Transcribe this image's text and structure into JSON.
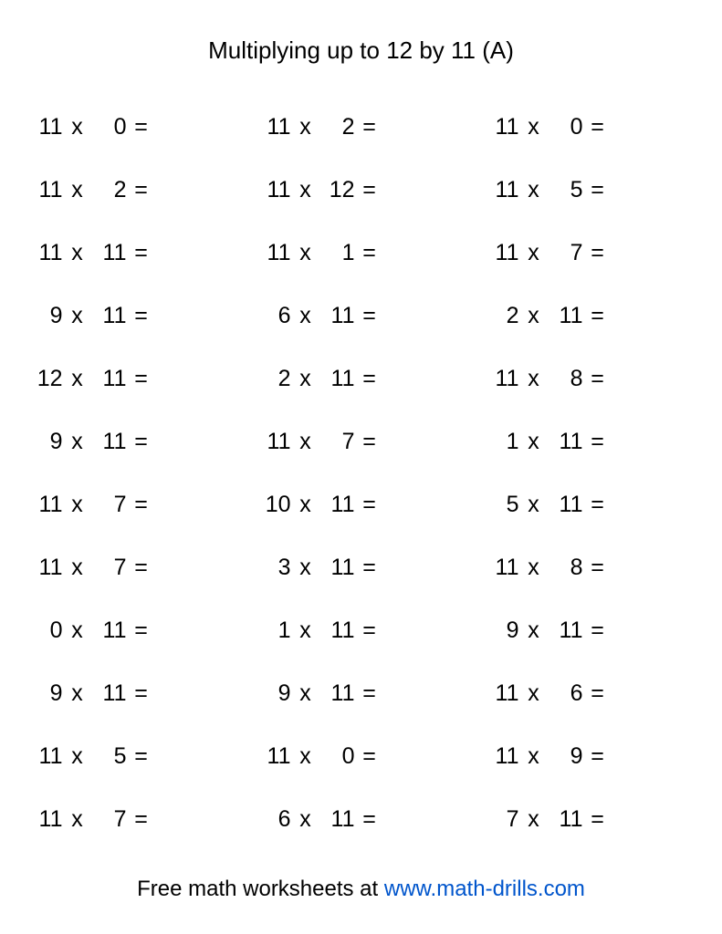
{
  "title": "Multiplying up to 12 by 11 (A)",
  "operator": "x",
  "equals": "=",
  "footer_prefix": "Free math worksheets at ",
  "footer_link": "www.math-drills.com",
  "link_color": "#0055cc",
  "text_color": "#000000",
  "background_color": "#ffffff",
  "font_size_title": 26,
  "font_size_problem": 25,
  "font_size_footer": 24,
  "columns": 3,
  "rows": 12,
  "problems": [
    {
      "a": 11,
      "b": 0
    },
    {
      "a": 11,
      "b": 2
    },
    {
      "a": 11,
      "b": 0
    },
    {
      "a": 11,
      "b": 2
    },
    {
      "a": 11,
      "b": 12
    },
    {
      "a": 11,
      "b": 5
    },
    {
      "a": 11,
      "b": 11
    },
    {
      "a": 11,
      "b": 1
    },
    {
      "a": 11,
      "b": 7
    },
    {
      "a": 9,
      "b": 11
    },
    {
      "a": 6,
      "b": 11
    },
    {
      "a": 2,
      "b": 11
    },
    {
      "a": 12,
      "b": 11
    },
    {
      "a": 2,
      "b": 11
    },
    {
      "a": 11,
      "b": 8
    },
    {
      "a": 9,
      "b": 11
    },
    {
      "a": 11,
      "b": 7
    },
    {
      "a": 1,
      "b": 11
    },
    {
      "a": 11,
      "b": 7
    },
    {
      "a": 10,
      "b": 11
    },
    {
      "a": 5,
      "b": 11
    },
    {
      "a": 11,
      "b": 7
    },
    {
      "a": 3,
      "b": 11
    },
    {
      "a": 11,
      "b": 8
    },
    {
      "a": 0,
      "b": 11
    },
    {
      "a": 1,
      "b": 11
    },
    {
      "a": 9,
      "b": 11
    },
    {
      "a": 9,
      "b": 11
    },
    {
      "a": 9,
      "b": 11
    },
    {
      "a": 11,
      "b": 6
    },
    {
      "a": 11,
      "b": 5
    },
    {
      "a": 11,
      "b": 0
    },
    {
      "a": 11,
      "b": 9
    },
    {
      "a": 11,
      "b": 7
    },
    {
      "a": 6,
      "b": 11
    },
    {
      "a": 7,
      "b": 11
    }
  ]
}
